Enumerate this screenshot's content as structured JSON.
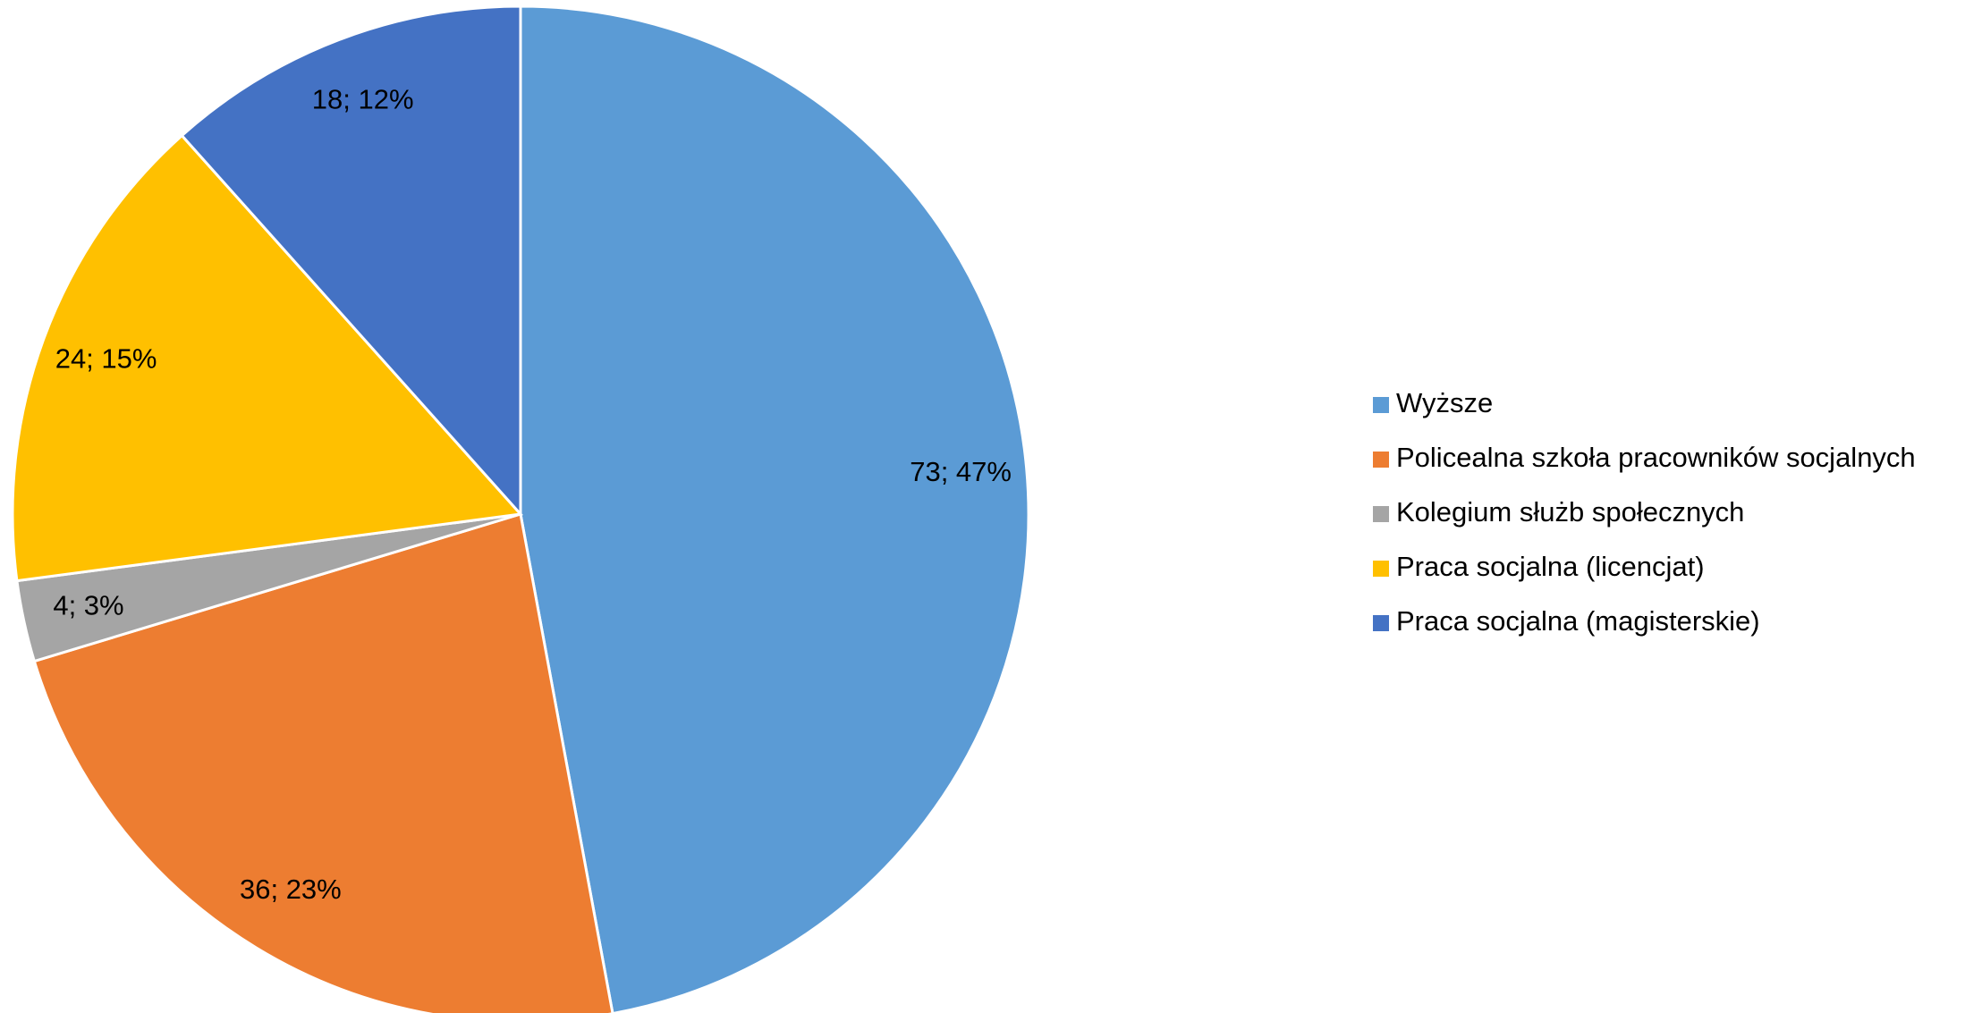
{
  "chart_data": {
    "type": "pie",
    "categories": [
      "Wyższe",
      "Policealna szkoła pracowników socjalnych",
      "Kolegium służb społecznych",
      "Praca socjalna (licencjat)",
      "Praca socjalna (magisterskie)"
    ],
    "values": [
      73,
      36,
      4,
      24,
      18
    ],
    "value_labels": [
      "73; 47%",
      "36; 23%",
      "4; 3%",
      "24; 15%",
      "18; 12%"
    ],
    "colors": [
      "#5b9bd5",
      "#ed7d31",
      "#a5a5a5",
      "#ffc000",
      "#4472c4"
    ],
    "legend": "right"
  }
}
